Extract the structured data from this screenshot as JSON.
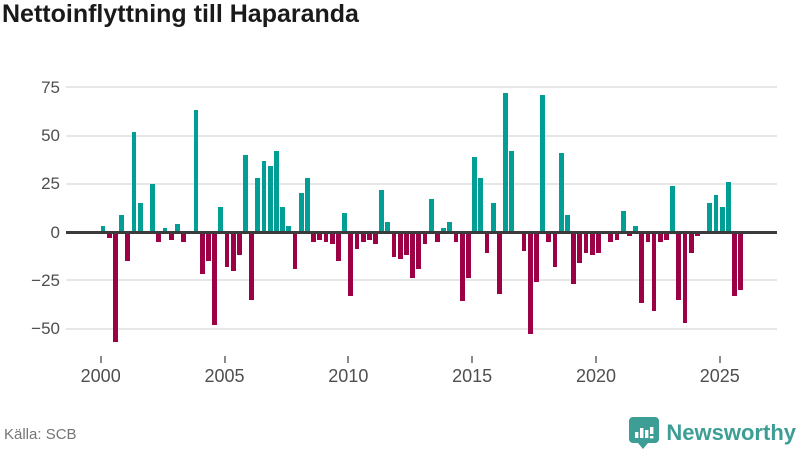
{
  "title": "Nettoinflyttning till Haparanda",
  "source": "Källa: SCB",
  "brand": "Newsworthy",
  "colors": {
    "positive_bar": "#009e94",
    "negative_bar": "#9c0045",
    "brand_teal": "#3d9e95",
    "axis_line": "#3b3b3b",
    "gridline": "#e7e7e7"
  },
  "chart_data": {
    "type": "bar",
    "frequency": "quarterly",
    "x_start": "2000-Q1",
    "x_end": "2025-Q4",
    "values": [
      3,
      -3,
      -57,
      9,
      -15,
      52,
      15,
      -1,
      25,
      -5,
      2,
      -4,
      4,
      -5,
      0,
      63,
      -22,
      -15,
      -48,
      13,
      -18,
      -20,
      -12,
      40,
      -35,
      28,
      37,
      34,
      42,
      13,
      3,
      -19,
      20,
      28,
      -5,
      -4,
      -5,
      -6,
      -15,
      10,
      -33,
      -9,
      -5,
      -4,
      -6,
      22,
      5,
      -13,
      -14,
      -12,
      -24,
      -19,
      -6,
      17,
      -5,
      2,
      5,
      -5,
      -36,
      -24,
      39,
      28,
      -11,
      15,
      -32,
      72,
      42,
      0,
      -10,
      -53,
      -26,
      71,
      -5,
      -18,
      41,
      9,
      -27,
      -16,
      -11,
      -12,
      -11,
      0,
      -5,
      -4,
      11,
      -2,
      3,
      -37,
      -5,
      -41,
      -5,
      -4,
      24,
      -35,
      -47,
      -11,
      -2,
      -1,
      15,
      19,
      13,
      26,
      -33,
      -30
    ],
    "x_tick_years": [
      2000,
      2005,
      2010,
      2015,
      2020,
      2025
    ],
    "x_tick_labels": [
      "2000",
      "2005",
      "2010",
      "2015",
      "2020",
      "2025"
    ],
    "y_ticks": [
      75,
      50,
      25,
      0,
      -25,
      -50
    ],
    "y_tick_labels": [
      "75",
      "50",
      "25",
      "0",
      "−25",
      "−50"
    ],
    "title": "Nettoinflyttning till Haparanda",
    "xlabel": "",
    "ylabel": "",
    "ylim": [
      -62,
      82
    ],
    "grid": true,
    "legend": false
  }
}
